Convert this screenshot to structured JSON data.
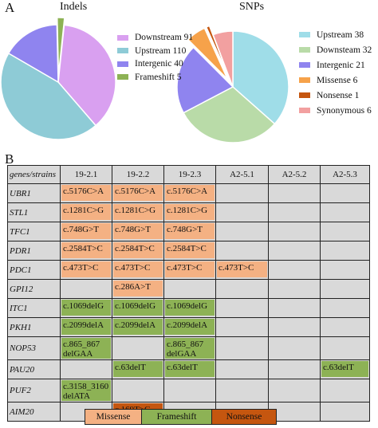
{
  "panel_labels": {
    "a": "A",
    "b": "B"
  },
  "chart_data": [
    {
      "type": "pie",
      "title": "Indels",
      "slices": [
        {
          "label": "Downstream 91",
          "value": 91,
          "color": "#d9a0f0"
        },
        {
          "label": "Upstream 110",
          "value": 110,
          "color": "#8ecbd6"
        },
        {
          "label": "Intergenic 40",
          "value": 40,
          "color": "#8f84ef"
        },
        {
          "label": "Frameshift 5",
          "value": 5,
          "color": "#8db255",
          "exploded": true
        }
      ]
    },
    {
      "type": "pie",
      "title": "SNPs",
      "slices": [
        {
          "label": "Upstream 38",
          "value": 38,
          "color": "#9fdde8"
        },
        {
          "label": "Downsteam 32",
          "value": 32,
          "color": "#b9dba8"
        },
        {
          "label": "Intergenic 21",
          "value": 21,
          "color": "#8f84ef"
        },
        {
          "label": "Missense 6",
          "value": 6,
          "color": "#f6a24a",
          "exploded": true
        },
        {
          "label": "Nonsense 1",
          "value": 1,
          "color": "#c5560f",
          "exploded": true
        },
        {
          "label": "Synonymous 6",
          "value": 6,
          "color": "#f2a0a0"
        }
      ]
    }
  ],
  "table": {
    "corner": "genes/strains",
    "strains": [
      "19-2.1",
      "19-2.2",
      "19-2.3",
      "A2-5.1",
      "A2-5.2",
      "A2-5.3"
    ],
    "rows": [
      {
        "gene": "UBR1",
        "cells": [
          {
            "text": "c.5176C>A",
            "type": "missense"
          },
          {
            "text": "c.5176C>A",
            "type": "missense"
          },
          {
            "text": "c.5176C>A",
            "type": "missense"
          },
          null,
          null,
          null
        ]
      },
      {
        "gene": "STL1",
        "cells": [
          {
            "text": "c.1281C>G",
            "type": "missense"
          },
          {
            "text": "c.1281C>G",
            "type": "missense"
          },
          {
            "text": "c.1281C>G",
            "type": "missense"
          },
          null,
          null,
          null
        ]
      },
      {
        "gene": "TFC1",
        "cells": [
          {
            "text": "c.748G>T",
            "type": "missense"
          },
          {
            "text": "c.748G>T",
            "type": "missense"
          },
          {
            "text": "c.748G>T",
            "type": "missense"
          },
          null,
          null,
          null
        ]
      },
      {
        "gene": "PDR1",
        "cells": [
          {
            "text": "c.2584T>C",
            "type": "missense"
          },
          {
            "text": "c.2584T>C",
            "type": "missense"
          },
          {
            "text": "c.2584T>C",
            "type": "missense"
          },
          null,
          null,
          null
        ]
      },
      {
        "gene": "PDC1",
        "cells": [
          {
            "text": "c.473T>C",
            "type": "missense"
          },
          {
            "text": "c.473T>C",
            "type": "missense"
          },
          {
            "text": "c.473T>C",
            "type": "missense"
          },
          {
            "text": "c.473T>C",
            "type": "missense"
          },
          null,
          null
        ]
      },
      {
        "gene": "GPI12",
        "cells": [
          null,
          {
            "text": "c.286A>T",
            "type": "missense"
          },
          null,
          null,
          null,
          null
        ]
      },
      {
        "gene": "ITC1",
        "cells": [
          {
            "text": "c.1069delG",
            "type": "frameshift"
          },
          {
            "text": "c.1069delG",
            "type": "frameshift"
          },
          {
            "text": "c.1069delG",
            "type": "frameshift"
          },
          null,
          null,
          null
        ]
      },
      {
        "gene": "PKH1",
        "cells": [
          {
            "text": "c.2099delA",
            "type": "frameshift"
          },
          {
            "text": "c.2099delA",
            "type": "frameshift"
          },
          {
            "text": "c.2099delA",
            "type": "frameshift"
          },
          null,
          null,
          null
        ]
      },
      {
        "gene": "NOP53",
        "tall": true,
        "cells": [
          {
            "text": "c.865_867 delGAA",
            "type": "frameshift"
          },
          null,
          {
            "text": "c.865_867 delGAA",
            "type": "frameshift"
          },
          null,
          null,
          null
        ]
      },
      {
        "gene": "PAU20",
        "cells": [
          null,
          {
            "text": "c.63delT",
            "type": "frameshift"
          },
          {
            "text": "c.63delT",
            "type": "frameshift"
          },
          null,
          null,
          {
            "text": "c.63delT",
            "type": "frameshift"
          }
        ]
      },
      {
        "gene": "PUF2",
        "tall": true,
        "cells": [
          {
            "text": "c.3158_3160 delATA",
            "type": "frameshift"
          },
          null,
          null,
          null,
          null,
          null
        ]
      },
      {
        "gene": "AIM20",
        "cells": [
          null,
          {
            "text": "c.169T>G",
            "type": "nonsense"
          },
          null,
          null,
          null,
          null
        ]
      }
    ]
  },
  "type_legend": [
    {
      "label": "Missense",
      "color": "#f4b183"
    },
    {
      "label": "Frameshift",
      "color": "#8db255"
    },
    {
      "label": "Nonsense",
      "color": "#c5560f"
    }
  ]
}
